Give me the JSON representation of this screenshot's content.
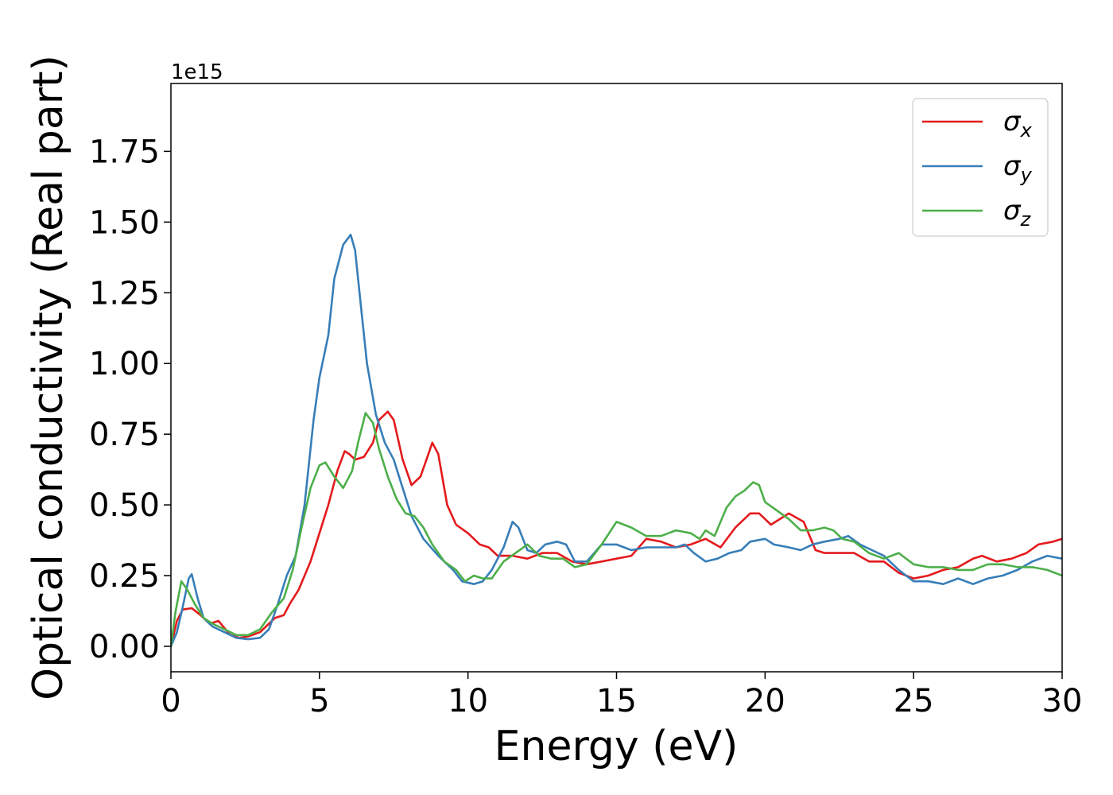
{
  "chart_data": {
    "type": "line",
    "title": "",
    "xlabel": "Energy (eV)",
    "ylabel": "Optical conductivity (Real part)",
    "y_offset_label": "1e15",
    "xlim": [
      0,
      30
    ],
    "ylim": [
      -0.09,
      1.99
    ],
    "x_ticks": [
      0,
      5,
      10,
      15,
      20,
      25,
      30
    ],
    "y_ticks": [
      0.0,
      0.25,
      0.5,
      0.75,
      1.0,
      1.25,
      1.5,
      1.75
    ],
    "x_tick_labels": [
      "0",
      "5",
      "10",
      "15",
      "20",
      "25",
      "30"
    ],
    "y_tick_labels": [
      "0.00",
      "0.25",
      "0.50",
      "0.75",
      "1.00",
      "1.25",
      "1.50",
      "1.75"
    ],
    "grid": false,
    "legend_position": "top-right",
    "series": [
      {
        "name": "σx",
        "legend_symbol": "σ",
        "legend_subscript": "x",
        "color": "#e41a1c",
        "points": [
          [
            0,
            0
          ],
          [
            0.2,
            0.09
          ],
          [
            0.4,
            0.13
          ],
          [
            0.7,
            0.135
          ],
          [
            1.0,
            0.11
          ],
          [
            1.3,
            0.08
          ],
          [
            1.6,
            0.09
          ],
          [
            2.0,
            0.04
          ],
          [
            2.3,
            0.03
          ],
          [
            2.6,
            0.035
          ],
          [
            3.0,
            0.05
          ],
          [
            3.3,
            0.08
          ],
          [
            3.5,
            0.1
          ],
          [
            3.8,
            0.11
          ],
          [
            4.0,
            0.15
          ],
          [
            4.3,
            0.2
          ],
          [
            4.7,
            0.3
          ],
          [
            5.0,
            0.4
          ],
          [
            5.3,
            0.5
          ],
          [
            5.6,
            0.62
          ],
          [
            5.85,
            0.69
          ],
          [
            6.0,
            0.68
          ],
          [
            6.2,
            0.66
          ],
          [
            6.5,
            0.67
          ],
          [
            6.8,
            0.72
          ],
          [
            7.0,
            0.8
          ],
          [
            7.3,
            0.83
          ],
          [
            7.5,
            0.8
          ],
          [
            7.8,
            0.66
          ],
          [
            8.1,
            0.57
          ],
          [
            8.4,
            0.6
          ],
          [
            8.6,
            0.66
          ],
          [
            8.8,
            0.72
          ],
          [
            9.0,
            0.68
          ],
          [
            9.3,
            0.5
          ],
          [
            9.6,
            0.43
          ],
          [
            10.0,
            0.4
          ],
          [
            10.4,
            0.36
          ],
          [
            10.7,
            0.35
          ],
          [
            11.0,
            0.32
          ],
          [
            11.5,
            0.32
          ],
          [
            12.0,
            0.31
          ],
          [
            12.5,
            0.33
          ],
          [
            13.0,
            0.33
          ],
          [
            13.5,
            0.3
          ],
          [
            14.0,
            0.29
          ],
          [
            14.5,
            0.3
          ],
          [
            15.0,
            0.31
          ],
          [
            15.5,
            0.32
          ],
          [
            16.0,
            0.38
          ],
          [
            16.5,
            0.37
          ],
          [
            17.0,
            0.35
          ],
          [
            17.5,
            0.36
          ],
          [
            18.0,
            0.38
          ],
          [
            18.5,
            0.35
          ],
          [
            19.0,
            0.42
          ],
          [
            19.5,
            0.47
          ],
          [
            19.8,
            0.47
          ],
          [
            20.2,
            0.43
          ],
          [
            20.5,
            0.45
          ],
          [
            20.8,
            0.47
          ],
          [
            21.3,
            0.44
          ],
          [
            21.7,
            0.34
          ],
          [
            22.0,
            0.33
          ],
          [
            22.5,
            0.33
          ],
          [
            23.0,
            0.33
          ],
          [
            23.5,
            0.3
          ],
          [
            24.0,
            0.3
          ],
          [
            24.5,
            0.26
          ],
          [
            25.0,
            0.24
          ],
          [
            25.5,
            0.25
          ],
          [
            26.0,
            0.27
          ],
          [
            26.5,
            0.28
          ],
          [
            27.0,
            0.31
          ],
          [
            27.3,
            0.32
          ],
          [
            27.8,
            0.3
          ],
          [
            28.3,
            0.31
          ],
          [
            28.8,
            0.33
          ],
          [
            29.2,
            0.36
          ],
          [
            29.7,
            0.37
          ],
          [
            30.0,
            0.38
          ]
        ]
      },
      {
        "name": "σy",
        "legend_symbol": "σ",
        "legend_subscript": "y",
        "color": "#377eb8",
        "points": [
          [
            0,
            0
          ],
          [
            0.2,
            0.05
          ],
          [
            0.4,
            0.14
          ],
          [
            0.6,
            0.24
          ],
          [
            0.7,
            0.255
          ],
          [
            0.9,
            0.17
          ],
          [
            1.1,
            0.1
          ],
          [
            1.4,
            0.07
          ],
          [
            1.8,
            0.05
          ],
          [
            2.2,
            0.03
          ],
          [
            2.6,
            0.025
          ],
          [
            3.0,
            0.03
          ],
          [
            3.3,
            0.06
          ],
          [
            3.6,
            0.15
          ],
          [
            3.9,
            0.25
          ],
          [
            4.2,
            0.32
          ],
          [
            4.5,
            0.5
          ],
          [
            4.8,
            0.8
          ],
          [
            5.0,
            0.95
          ],
          [
            5.3,
            1.1
          ],
          [
            5.5,
            1.3
          ],
          [
            5.8,
            1.42
          ],
          [
            6.05,
            1.455
          ],
          [
            6.2,
            1.4
          ],
          [
            6.4,
            1.2
          ],
          [
            6.6,
            1.0
          ],
          [
            6.9,
            0.82
          ],
          [
            7.2,
            0.72
          ],
          [
            7.5,
            0.66
          ],
          [
            7.8,
            0.56
          ],
          [
            8.1,
            0.46
          ],
          [
            8.5,
            0.38
          ],
          [
            9.0,
            0.32
          ],
          [
            9.5,
            0.27
          ],
          [
            9.8,
            0.23
          ],
          [
            10.2,
            0.22
          ],
          [
            10.5,
            0.23
          ],
          [
            10.8,
            0.27
          ],
          [
            11.2,
            0.35
          ],
          [
            11.5,
            0.44
          ],
          [
            11.7,
            0.42
          ],
          [
            12.0,
            0.34
          ],
          [
            12.3,
            0.33
          ],
          [
            12.6,
            0.36
          ],
          [
            13.0,
            0.37
          ],
          [
            13.3,
            0.36
          ],
          [
            13.6,
            0.3
          ],
          [
            14.0,
            0.3
          ],
          [
            14.5,
            0.36
          ],
          [
            15.0,
            0.36
          ],
          [
            15.5,
            0.34
          ],
          [
            16.0,
            0.35
          ],
          [
            16.5,
            0.35
          ],
          [
            17.0,
            0.35
          ],
          [
            17.3,
            0.36
          ],
          [
            17.6,
            0.33
          ],
          [
            18.0,
            0.3
          ],
          [
            18.4,
            0.31
          ],
          [
            18.8,
            0.33
          ],
          [
            19.2,
            0.34
          ],
          [
            19.5,
            0.37
          ],
          [
            20.0,
            0.38
          ],
          [
            20.3,
            0.36
          ],
          [
            20.8,
            0.35
          ],
          [
            21.2,
            0.34
          ],
          [
            21.6,
            0.36
          ],
          [
            22.0,
            0.37
          ],
          [
            22.5,
            0.38
          ],
          [
            22.8,
            0.39
          ],
          [
            23.2,
            0.36
          ],
          [
            23.6,
            0.34
          ],
          [
            24.0,
            0.32
          ],
          [
            24.5,
            0.27
          ],
          [
            25.0,
            0.23
          ],
          [
            25.5,
            0.23
          ],
          [
            26.0,
            0.22
          ],
          [
            26.5,
            0.24
          ],
          [
            27.0,
            0.22
          ],
          [
            27.5,
            0.24
          ],
          [
            28.0,
            0.25
          ],
          [
            28.5,
            0.27
          ],
          [
            29.0,
            0.3
          ],
          [
            29.5,
            0.32
          ],
          [
            30.0,
            0.31
          ]
        ]
      },
      {
        "name": "σz",
        "legend_symbol": "σ",
        "legend_subscript": "z",
        "color": "#4daf4a",
        "points": [
          [
            0,
            0
          ],
          [
            0.15,
            0.12
          ],
          [
            0.35,
            0.23
          ],
          [
            0.55,
            0.2
          ],
          [
            0.8,
            0.15
          ],
          [
            1.1,
            0.1
          ],
          [
            1.4,
            0.08
          ],
          [
            1.8,
            0.06
          ],
          [
            2.2,
            0.04
          ],
          [
            2.6,
            0.04
          ],
          [
            3.0,
            0.06
          ],
          [
            3.4,
            0.12
          ],
          [
            3.8,
            0.17
          ],
          [
            4.1,
            0.27
          ],
          [
            4.4,
            0.42
          ],
          [
            4.7,
            0.56
          ],
          [
            5.0,
            0.64
          ],
          [
            5.2,
            0.65
          ],
          [
            5.5,
            0.6
          ],
          [
            5.8,
            0.56
          ],
          [
            6.1,
            0.62
          ],
          [
            6.3,
            0.72
          ],
          [
            6.55,
            0.825
          ],
          [
            6.8,
            0.79
          ],
          [
            7.0,
            0.7
          ],
          [
            7.3,
            0.6
          ],
          [
            7.6,
            0.52
          ],
          [
            7.9,
            0.47
          ],
          [
            8.2,
            0.46
          ],
          [
            8.5,
            0.42
          ],
          [
            8.8,
            0.36
          ],
          [
            9.2,
            0.3
          ],
          [
            9.6,
            0.27
          ],
          [
            9.9,
            0.23
          ],
          [
            10.2,
            0.25
          ],
          [
            10.5,
            0.24
          ],
          [
            10.8,
            0.24
          ],
          [
            11.2,
            0.3
          ],
          [
            11.6,
            0.33
          ],
          [
            12.0,
            0.36
          ],
          [
            12.4,
            0.32
          ],
          [
            12.8,
            0.31
          ],
          [
            13.2,
            0.31
          ],
          [
            13.6,
            0.28
          ],
          [
            14.0,
            0.29
          ],
          [
            14.5,
            0.36
          ],
          [
            15.0,
            0.44
          ],
          [
            15.5,
            0.42
          ],
          [
            16.0,
            0.39
          ],
          [
            16.5,
            0.39
          ],
          [
            17.0,
            0.41
          ],
          [
            17.5,
            0.4
          ],
          [
            17.8,
            0.38
          ],
          [
            18.0,
            0.41
          ],
          [
            18.3,
            0.39
          ],
          [
            18.7,
            0.49
          ],
          [
            19.0,
            0.53
          ],
          [
            19.3,
            0.55
          ],
          [
            19.6,
            0.58
          ],
          [
            19.8,
            0.57
          ],
          [
            20.0,
            0.51
          ],
          [
            20.4,
            0.48
          ],
          [
            20.8,
            0.45
          ],
          [
            21.2,
            0.41
          ],
          [
            21.6,
            0.41
          ],
          [
            22.0,
            0.42
          ],
          [
            22.3,
            0.41
          ],
          [
            22.6,
            0.38
          ],
          [
            23.0,
            0.37
          ],
          [
            23.5,
            0.33
          ],
          [
            24.0,
            0.31
          ],
          [
            24.5,
            0.33
          ],
          [
            25.0,
            0.29
          ],
          [
            25.5,
            0.28
          ],
          [
            26.0,
            0.28
          ],
          [
            26.5,
            0.27
          ],
          [
            27.0,
            0.27
          ],
          [
            27.5,
            0.29
          ],
          [
            28.0,
            0.29
          ],
          [
            28.5,
            0.28
          ],
          [
            29.0,
            0.28
          ],
          [
            29.5,
            0.27
          ],
          [
            30.0,
            0.25
          ]
        ]
      }
    ]
  }
}
